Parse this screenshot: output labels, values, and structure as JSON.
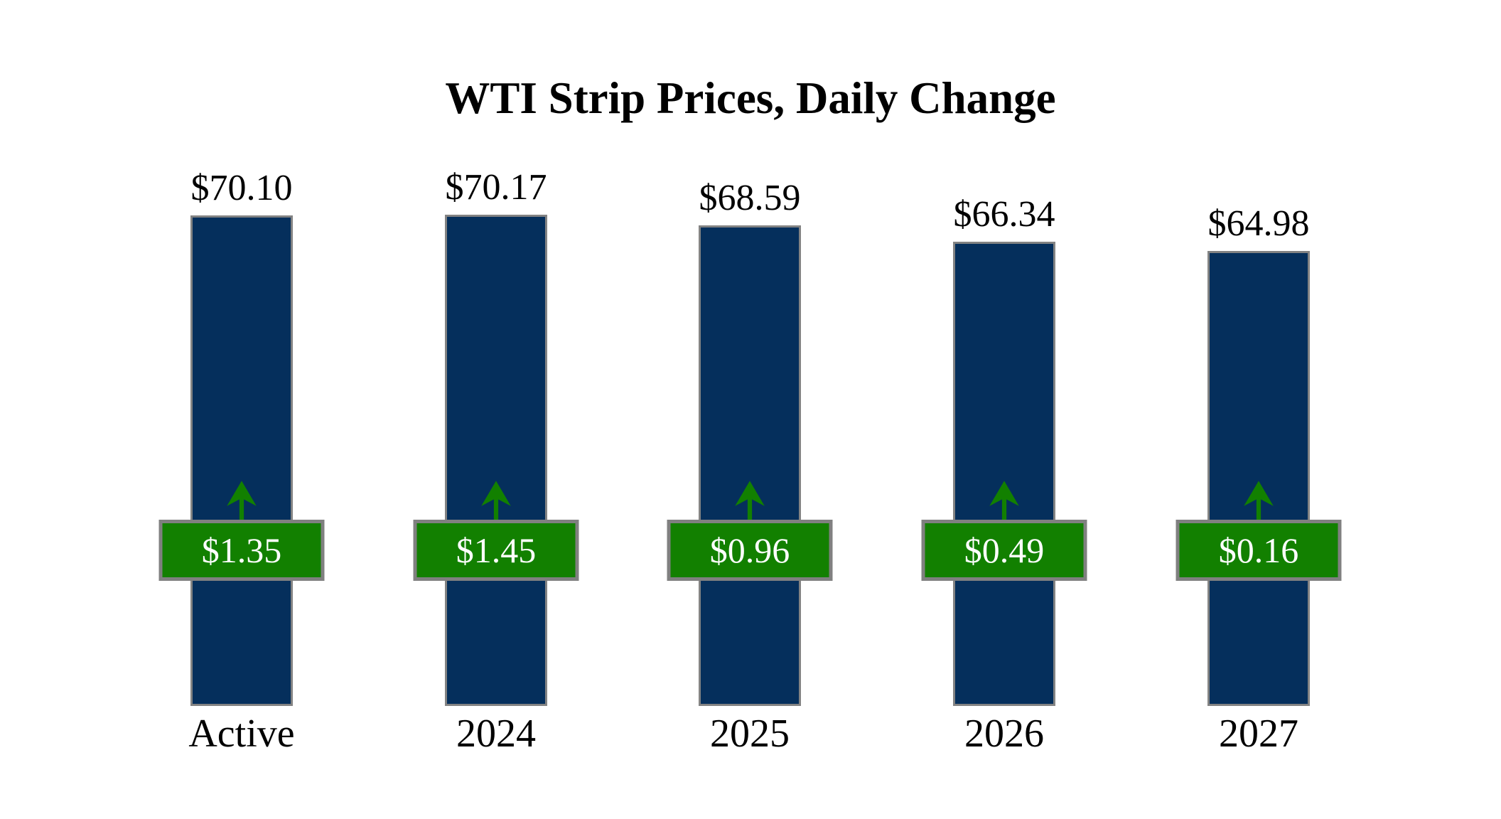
{
  "chart_data": {
    "type": "bar",
    "title": "WTI Strip Prices, Daily Change",
    "categories": [
      "Active",
      "2024",
      "2025",
      "2026",
      "2027"
    ],
    "series": [
      {
        "name": "WTI strip price (USD per barrel)",
        "values": [
          70.1,
          70.17,
          68.59,
          66.34,
          64.98
        ],
        "labels": [
          "$70.10",
          "$70.17",
          "$68.59",
          "$66.34",
          "$64.98"
        ]
      },
      {
        "name": "Daily change (USD)",
        "values": [
          1.35,
          1.45,
          0.96,
          0.49,
          0.16
        ],
        "labels": [
          "$1.35",
          "$1.45",
          "$0.96",
          "$0.49",
          "$0.16"
        ],
        "direction": "up"
      }
    ],
    "xlabel": "",
    "ylabel": "",
    "ylim": [
      0,
      72
    ],
    "grid": false,
    "legend_position": "none",
    "colors": {
      "bar_fill": "#052f5c",
      "bar_border": "#838383",
      "badge_fill": "#128000",
      "badge_border": "#808080",
      "badge_text": "#ffffff",
      "arrow": "#128000",
      "text": "#000000",
      "background": "#ffffff"
    }
  }
}
